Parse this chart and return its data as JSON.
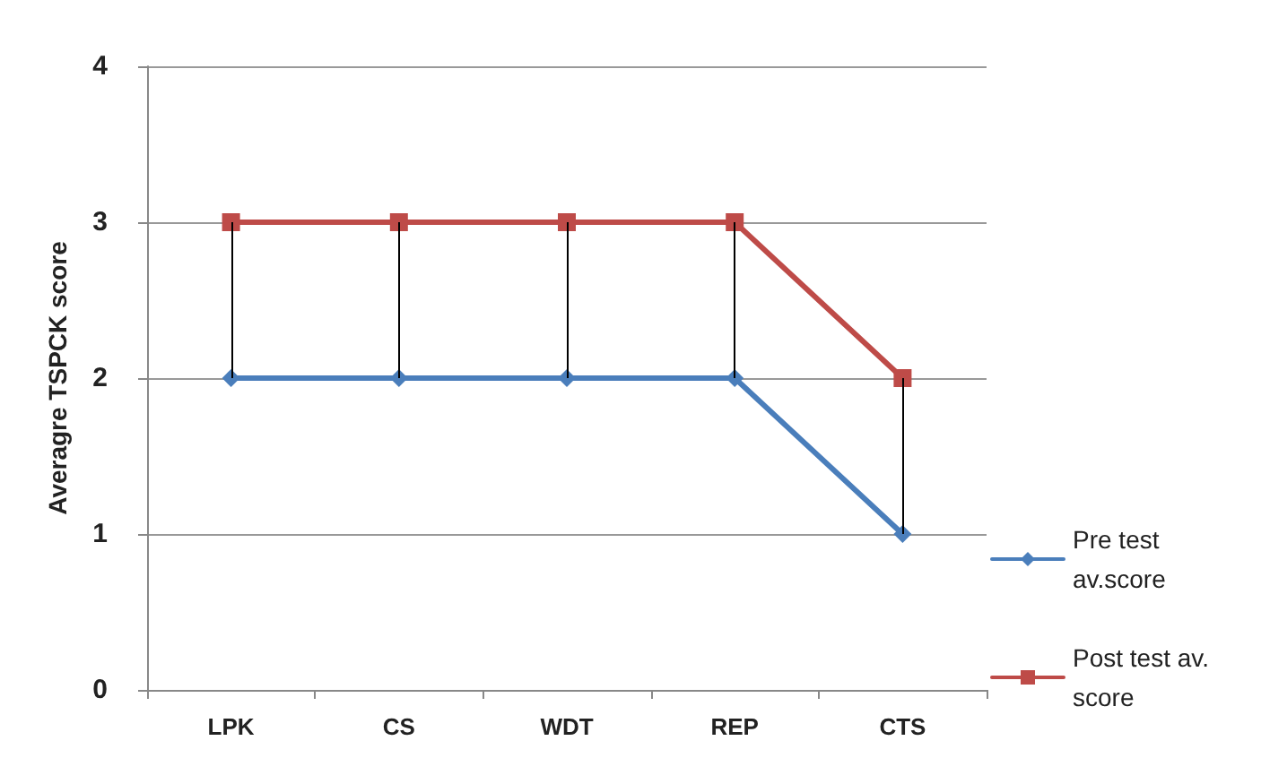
{
  "chart_data": {
    "type": "line",
    "ylabel": "Averagre TSPCK score",
    "categories": [
      "LPK",
      "CS",
      "WDT",
      "REP",
      "CTS"
    ],
    "series": [
      {
        "name": "Pre test av.score",
        "color": "#4a7ebb",
        "marker": "diamond",
        "values": [
          2,
          2,
          2,
          2,
          1
        ],
        "errors": [
          [
            2,
            3
          ],
          [
            2,
            3
          ],
          [
            2,
            3
          ],
          [
            2,
            3
          ],
          [
            1,
            2
          ]
        ]
      },
      {
        "name": "Post test av. score",
        "color": "#be4b48",
        "marker": "square",
        "values": [
          3,
          3,
          3,
          3,
          2
        ]
      }
    ],
    "ylim": [
      0,
      4
    ],
    "yticks": [
      0,
      1,
      2,
      3,
      4
    ],
    "grid": "y",
    "legend": "right",
    "line_style": "solid"
  }
}
